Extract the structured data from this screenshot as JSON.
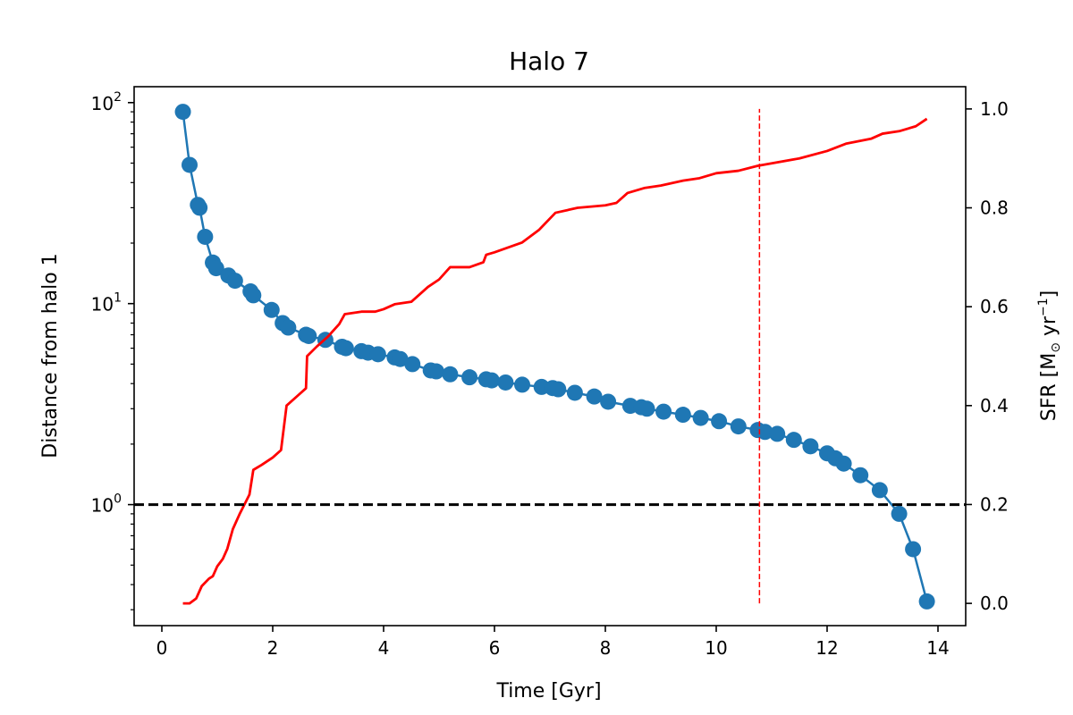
{
  "chart_data": {
    "type": "line",
    "title": "Halo 7",
    "xlabel": "Time [Gyr]",
    "ylabel_left": "Distance from halo 1",
    "ylabel_right_parts": [
      "SFR [M",
      "⊙",
      " yr",
      "−1",
      "]"
    ],
    "x_ticks": [
      "0",
      "2",
      "4",
      "6",
      "8",
      "10",
      "12",
      "14"
    ],
    "x_tick_values": [
      0,
      2,
      4,
      6,
      8,
      10,
      12,
      14
    ],
    "xlim": [
      -0.5,
      14.5
    ],
    "y_left_scale": "log",
    "y_left_lim": [
      0.25,
      120
    ],
    "y_left_ticks": [
      {
        "base": "10",
        "exp": "0",
        "value": 1
      },
      {
        "base": "10",
        "exp": "1",
        "value": 10
      },
      {
        "base": "10",
        "exp": "2",
        "value": 100
      }
    ],
    "y_right_lim": [
      -0.045,
      1.045
    ],
    "y_right_ticks": [
      "0.0",
      "0.2",
      "0.4",
      "0.6",
      "0.8",
      "1.0"
    ],
    "y_right_tick_values": [
      0,
      0.2,
      0.4,
      0.6,
      0.8,
      1.0
    ],
    "grid": false,
    "series": [
      {
        "axis": "left",
        "style": "line+markers",
        "color": "#1f77b4",
        "points": [
          [
            0.38,
            90
          ],
          [
            0.5,
            49
          ],
          [
            0.65,
            31
          ],
          [
            0.68,
            30
          ],
          [
            0.78,
            21.5
          ],
          [
            0.92,
            16
          ],
          [
            0.98,
            15
          ],
          [
            1.2,
            13.8
          ],
          [
            1.32,
            13
          ],
          [
            1.6,
            11.5
          ],
          [
            1.65,
            11
          ],
          [
            1.98,
            9.3
          ],
          [
            2.18,
            8
          ],
          [
            2.28,
            7.6
          ],
          [
            2.6,
            7.0
          ],
          [
            2.65,
            6.9
          ],
          [
            2.95,
            6.6
          ],
          [
            3.25,
            6.1
          ],
          [
            3.32,
            6.0
          ],
          [
            3.6,
            5.8
          ],
          [
            3.72,
            5.7
          ],
          [
            3.9,
            5.6
          ],
          [
            4.2,
            5.4
          ],
          [
            4.3,
            5.3
          ],
          [
            4.52,
            5.0
          ],
          [
            4.85,
            4.65
          ],
          [
            4.95,
            4.6
          ],
          [
            5.2,
            4.45
          ],
          [
            5.55,
            4.3
          ],
          [
            5.85,
            4.2
          ],
          [
            5.95,
            4.15
          ],
          [
            6.2,
            4.05
          ],
          [
            6.5,
            3.95
          ],
          [
            6.85,
            3.85
          ],
          [
            7.05,
            3.8
          ],
          [
            7.15,
            3.75
          ],
          [
            7.45,
            3.6
          ],
          [
            7.8,
            3.45
          ],
          [
            8.05,
            3.25
          ],
          [
            8.45,
            3.1
          ],
          [
            8.65,
            3.05
          ],
          [
            8.75,
            3.0
          ],
          [
            9.05,
            2.9
          ],
          [
            9.4,
            2.8
          ],
          [
            9.72,
            2.7
          ],
          [
            10.05,
            2.6
          ],
          [
            10.4,
            2.45
          ],
          [
            10.75,
            2.35
          ],
          [
            10.88,
            2.3
          ],
          [
            11.1,
            2.25
          ],
          [
            11.4,
            2.1
          ],
          [
            11.7,
            1.95
          ],
          [
            12.0,
            1.8
          ],
          [
            12.15,
            1.7
          ],
          [
            12.3,
            1.6
          ],
          [
            12.6,
            1.4
          ],
          [
            12.95,
            1.18
          ],
          [
            13.3,
            0.9
          ],
          [
            13.55,
            0.6
          ],
          [
            13.8,
            0.33
          ]
        ]
      },
      {
        "axis": "right",
        "style": "line",
        "color": "#ff0000",
        "points": [
          [
            0.38,
            0
          ],
          [
            0.5,
            0
          ],
          [
            0.62,
            0.01
          ],
          [
            0.72,
            0.035
          ],
          [
            0.85,
            0.05
          ],
          [
            0.92,
            0.055
          ],
          [
            1.0,
            0.075
          ],
          [
            1.1,
            0.09
          ],
          [
            1.18,
            0.11
          ],
          [
            1.28,
            0.15
          ],
          [
            1.4,
            0.18
          ],
          [
            1.58,
            0.22
          ],
          [
            1.65,
            0.27
          ],
          [
            1.8,
            0.28
          ],
          [
            2.0,
            0.295
          ],
          [
            2.15,
            0.31
          ],
          [
            2.25,
            0.4
          ],
          [
            2.45,
            0.42
          ],
          [
            2.6,
            0.435
          ],
          [
            2.62,
            0.5
          ],
          [
            2.8,
            0.52
          ],
          [
            3.0,
            0.54
          ],
          [
            3.2,
            0.565
          ],
          [
            3.3,
            0.585
          ],
          [
            3.6,
            0.59
          ],
          [
            3.85,
            0.59
          ],
          [
            4.0,
            0.595
          ],
          [
            4.2,
            0.605
          ],
          [
            4.5,
            0.61
          ],
          [
            4.8,
            0.64
          ],
          [
            5.0,
            0.655
          ],
          [
            5.2,
            0.68
          ],
          [
            5.55,
            0.68
          ],
          [
            5.8,
            0.69
          ],
          [
            5.85,
            0.705
          ],
          [
            6.0,
            0.71
          ],
          [
            6.5,
            0.73
          ],
          [
            6.8,
            0.755
          ],
          [
            7.1,
            0.79
          ],
          [
            7.5,
            0.8
          ],
          [
            8.0,
            0.805
          ],
          [
            8.2,
            0.81
          ],
          [
            8.4,
            0.83
          ],
          [
            8.7,
            0.84
          ],
          [
            9.0,
            0.845
          ],
          [
            9.4,
            0.855
          ],
          [
            9.7,
            0.86
          ],
          [
            10.0,
            0.87
          ],
          [
            10.4,
            0.875
          ],
          [
            10.75,
            0.885
          ],
          [
            11.0,
            0.89
          ],
          [
            11.5,
            0.9
          ],
          [
            12.0,
            0.915
          ],
          [
            12.35,
            0.93
          ],
          [
            12.8,
            0.94
          ],
          [
            13.0,
            0.95
          ],
          [
            13.3,
            0.955
          ],
          [
            13.6,
            0.965
          ],
          [
            13.8,
            0.98
          ]
        ]
      }
    ],
    "reference_lines": [
      {
        "orientation": "horizontal",
        "axis": "left",
        "value": 1,
        "color": "#000000",
        "style": "dashed"
      },
      {
        "orientation": "vertical",
        "value": 10.78,
        "y_right_range": [
          0,
          1.0
        ],
        "color": "#ff0000",
        "style": "dashed"
      }
    ]
  }
}
